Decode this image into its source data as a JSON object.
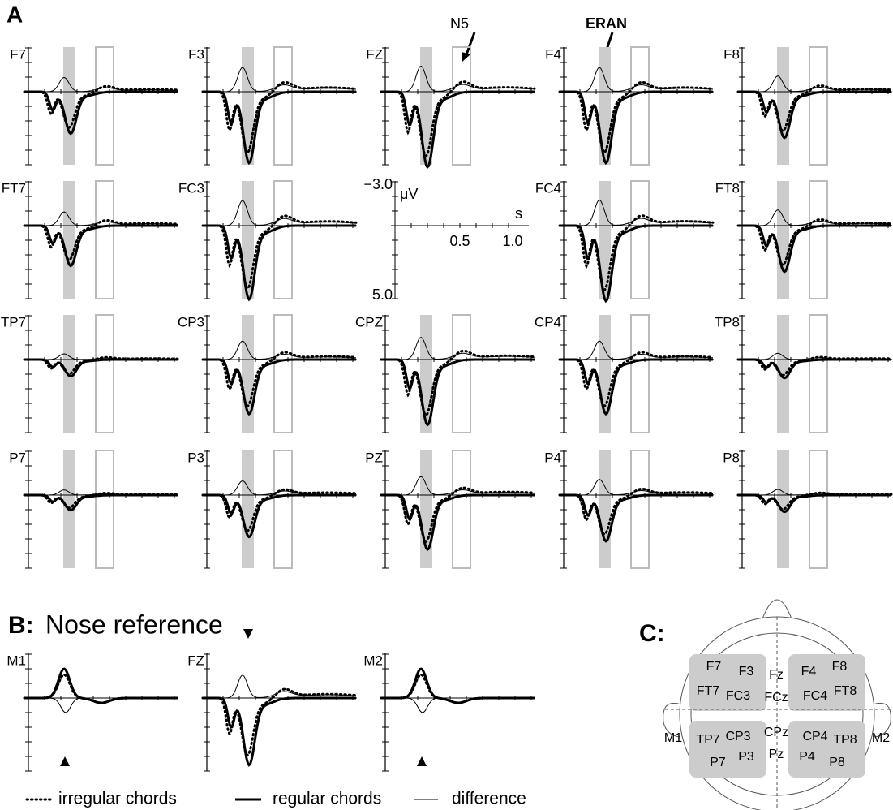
{
  "panel_a": {
    "label": "A",
    "rows": [
      [
        "F7",
        "F3",
        "FZ",
        "F4",
        "F8"
      ],
      [
        "FT7",
        "FC3",
        null,
        "FC4",
        "FT8"
      ],
      [
        "TP7",
        "CP3",
        "CPZ",
        "CP4",
        "TP8"
      ],
      [
        "P7",
        "P3",
        "PZ",
        "P4",
        "P8"
      ]
    ],
    "annotations": [
      "N5",
      "ERAN"
    ],
    "scale": {
      "y_top": "−3.0",
      "y_unit": "μV",
      "x_unit": "s",
      "x_ticks": [
        "0.5",
        "1.0"
      ],
      "y_bottom": "5.0"
    }
  },
  "panel_b": {
    "label": "B:",
    "title": "Nose reference",
    "electrodes": [
      "M1",
      "FZ",
      "M2"
    ]
  },
  "legend": [
    "irregular chords",
    "regular chords",
    "difference"
  ],
  "panel_c": {
    "label": "C:",
    "electrodes": [
      "F7",
      "F3",
      "Fz",
      "F4",
      "F8",
      "FT7",
      "FC3",
      "FCz",
      "FC4",
      "FT8",
      "TP7",
      "CP3",
      "CPz",
      "CP4",
      "TP8",
      "P7",
      "P3",
      "Pz",
      "P4",
      "P8"
    ],
    "mastoids": [
      "M1",
      "M2"
    ]
  }
}
